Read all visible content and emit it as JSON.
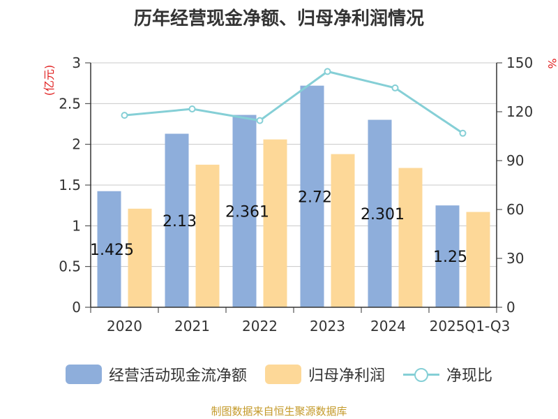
{
  "chart_data": {
    "type": "bar",
    "title": "历年经营现金净额、归母净利润情况",
    "categories": [
      "2020",
      "2021",
      "2022",
      "2023",
      "2024",
      "2025Q1-Q3"
    ],
    "series": [
      {
        "name": "经营活动现金流净额",
        "type": "bar",
        "axis": "left",
        "color": "#8eaedb",
        "values": [
          1.425,
          2.13,
          2.361,
          2.72,
          2.301,
          1.25
        ],
        "labels": [
          "1.425",
          "2.13",
          "2.361",
          "2.72",
          "2.301",
          "1.25"
        ]
      },
      {
        "name": "归母净利润",
        "type": "bar",
        "axis": "left",
        "color": "#fdd898",
        "values": [
          1.21,
          1.75,
          2.06,
          1.88,
          1.71,
          1.17
        ]
      },
      {
        "name": "净现比",
        "type": "line",
        "axis": "right",
        "color": "#85cfd6",
        "values": [
          117.8,
          121.7,
          114.6,
          144.7,
          134.6,
          106.8
        ]
      }
    ],
    "y_left": {
      "label": "(亿元)",
      "range": [
        0,
        3
      ],
      "ticks": [
        "0",
        "0.5",
        "1",
        "1.5",
        "2",
        "2.5",
        "3"
      ]
    },
    "y_right": {
      "label": "%",
      "range": [
        0,
        150
      ],
      "ticks": [
        "0",
        "30",
        "60",
        "90",
        "120",
        "150"
      ]
    },
    "grid": true,
    "legend_position": "bottom"
  },
  "source_note": "制图数据来自恒生聚源数据库"
}
